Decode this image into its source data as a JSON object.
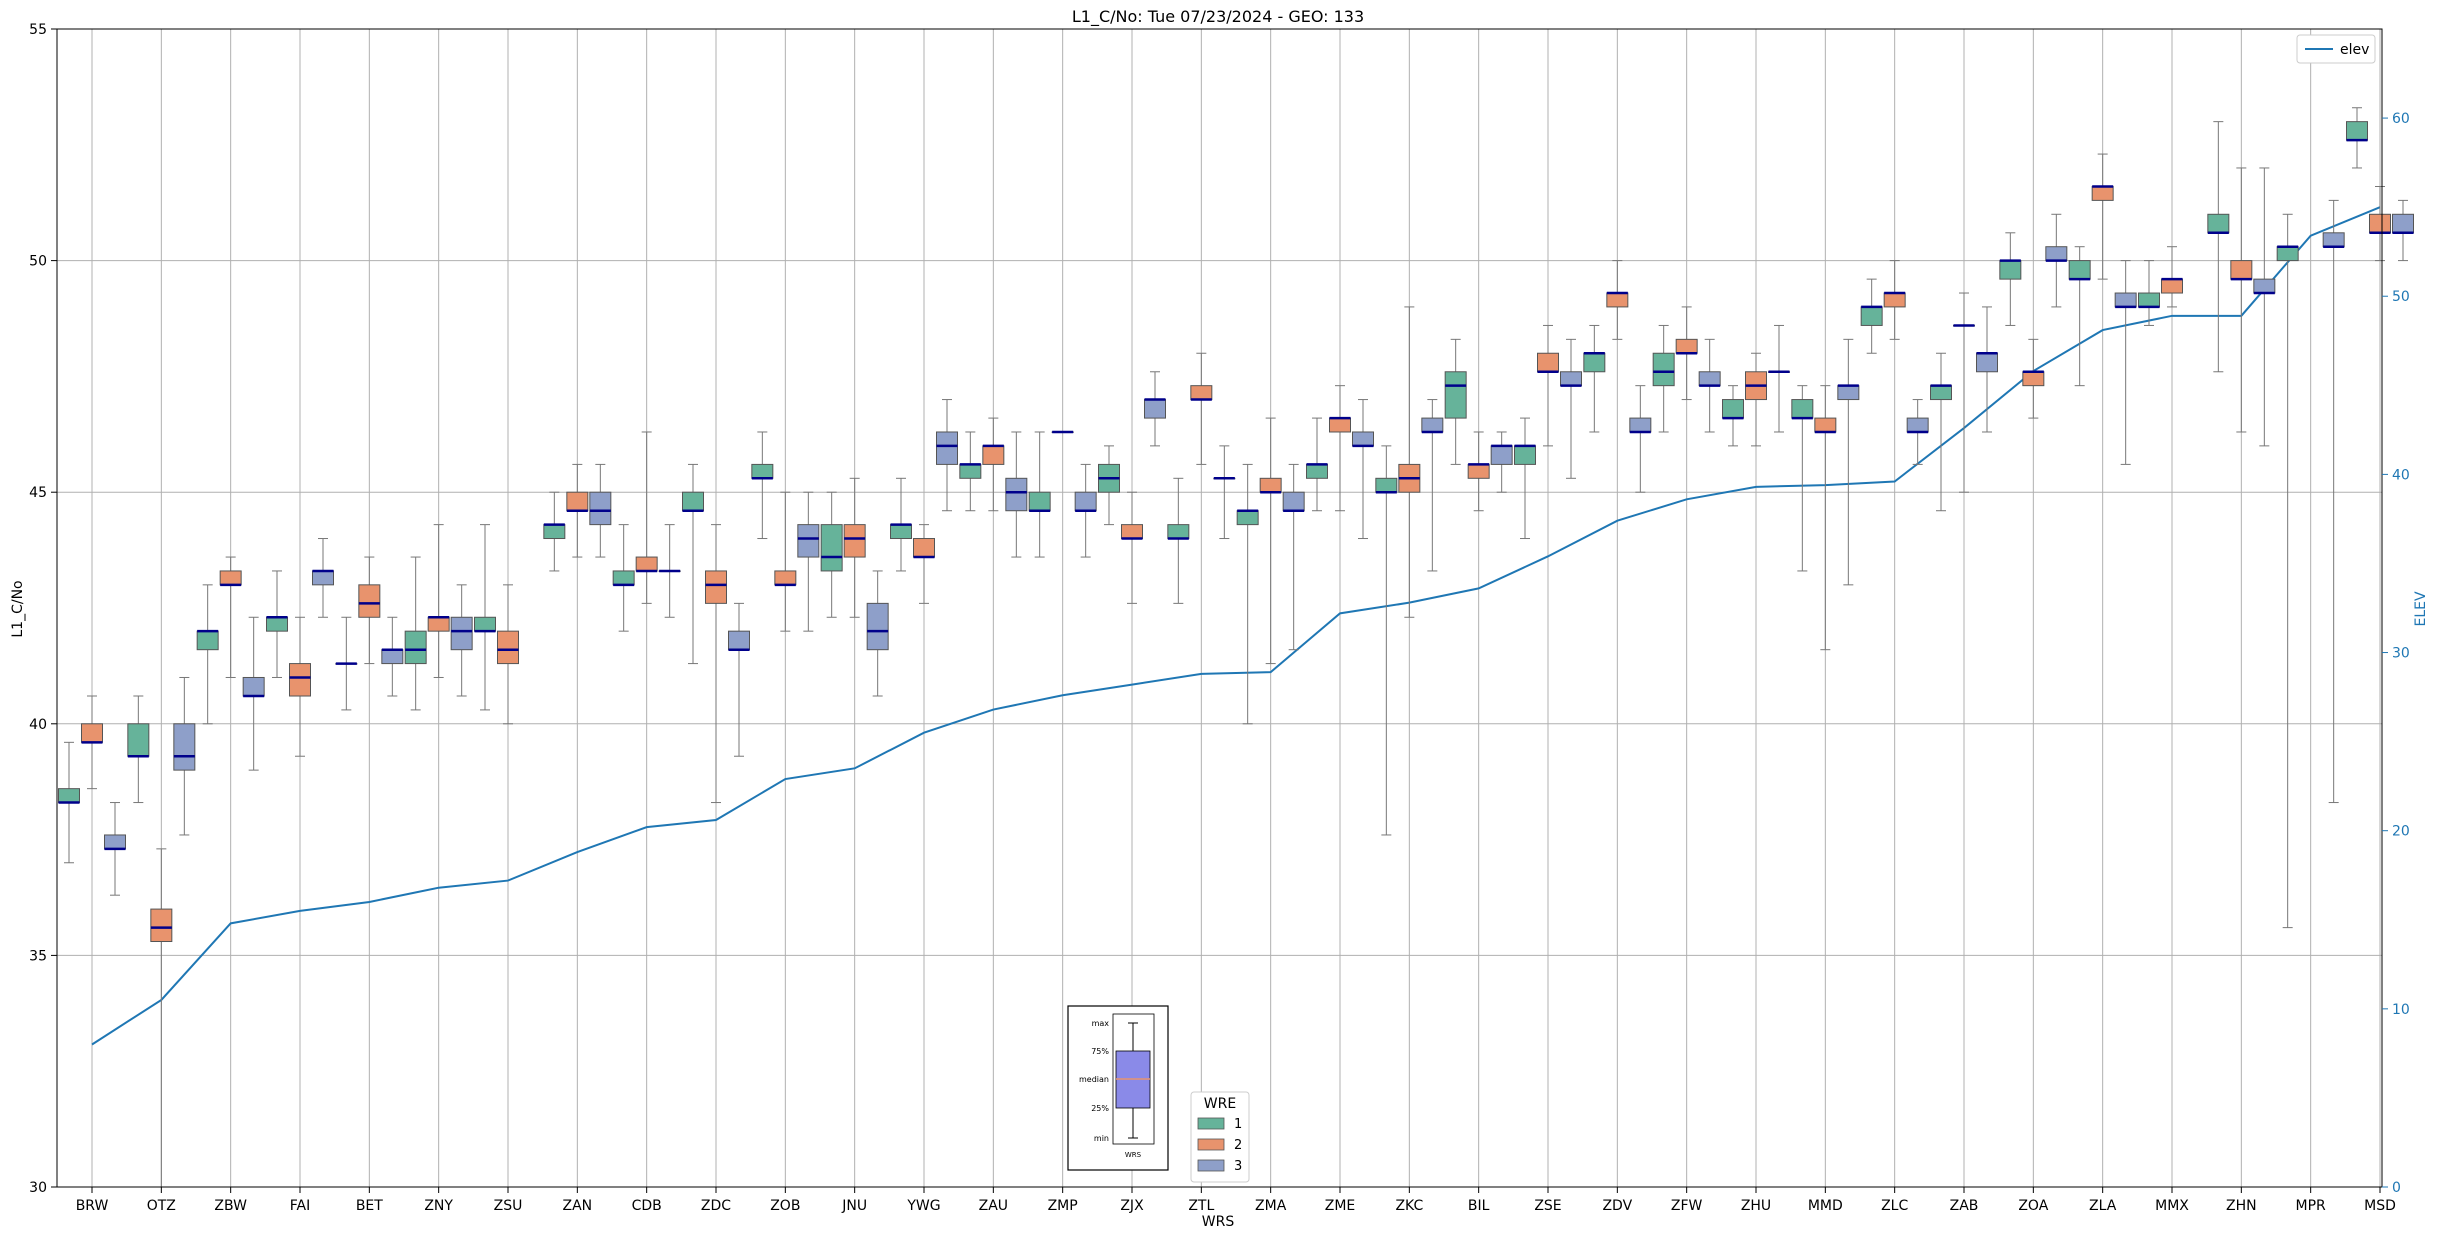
{
  "chart_data": {
    "type": "box",
    "title": "L1_C/No: Tue 07/23/2024 - GEO: 133",
    "xlabel": "WRS",
    "ylabel": "L1_C/No",
    "y2label": "ELEV",
    "ylim": [
      30,
      55
    ],
    "y2lim": [
      0,
      65
    ],
    "yticks": [
      30,
      35,
      40,
      45,
      50,
      55
    ],
    "y2ticks": [
      0,
      10,
      20,
      30,
      40,
      50,
      60
    ],
    "grid": true,
    "categories": [
      "BRW",
      "OTZ",
      "ZBW",
      "FAI",
      "BET",
      "ZNY",
      "ZSU",
      "ZAN",
      "CDB",
      "ZDC",
      "ZOB",
      "JNU",
      "YWG",
      "ZAU",
      "ZMP",
      "ZJX",
      "ZTL",
      "ZMA",
      "ZME",
      "ZKC",
      "BIL",
      "ZSE",
      "ZDV",
      "ZFW",
      "ZHU",
      "MMD",
      "ZLC",
      "ZAB",
      "ZOA",
      "ZLA",
      "MMX",
      "ZHN",
      "MPR",
      "MSD"
    ],
    "colors": {
      "wre1": "#66b39a",
      "wre2": "#e8936d",
      "wre3": "#8e9fc9",
      "median": "#00008b",
      "elev": "#1f77b4",
      "whisker": "#777777",
      "grid": "#b0b0b0"
    },
    "boxes": [
      {
        "cat": "BRW",
        "wre": 1,
        "min": 37.0,
        "q1": 38.3,
        "median": 38.3,
        "q3": 38.6,
        "max": 39.6
      },
      {
        "cat": "BRW",
        "wre": 2,
        "min": 38.6,
        "q1": 39.6,
        "median": 39.6,
        "q3": 40.0,
        "max": 40.6
      },
      {
        "cat": "BRW",
        "wre": 3,
        "min": 36.3,
        "q1": 37.3,
        "median": 37.3,
        "q3": 37.6,
        "max": 38.3
      },
      {
        "cat": "OTZ",
        "wre": 1,
        "min": 38.3,
        "q1": 39.3,
        "median": 39.3,
        "q3": 40.0,
        "max": 40.6
      },
      {
        "cat": "OTZ",
        "wre": 2,
        "min": 30.0,
        "q1": 35.3,
        "median": 35.6,
        "q3": 36.0,
        "max": 37.3
      },
      {
        "cat": "OTZ",
        "wre": 3,
        "min": 37.6,
        "q1": 39.0,
        "median": 39.3,
        "q3": 40.0,
        "max": 41.0
      },
      {
        "cat": "ZBW",
        "wre": 1,
        "min": 40.0,
        "q1": 41.6,
        "median": 42.0,
        "q3": 42.0,
        "max": 43.0
      },
      {
        "cat": "ZBW",
        "wre": 2,
        "min": 41.0,
        "q1": 43.0,
        "median": 43.0,
        "q3": 43.3,
        "max": 43.6
      },
      {
        "cat": "ZBW",
        "wre": 3,
        "min": 39.0,
        "q1": 40.6,
        "median": 40.6,
        "q3": 41.0,
        "max": 42.3
      },
      {
        "cat": "FAI",
        "wre": 1,
        "min": 41.0,
        "q1": 42.0,
        "median": 42.3,
        "q3": 42.3,
        "max": 43.3
      },
      {
        "cat": "FAI",
        "wre": 2,
        "min": 39.3,
        "q1": 40.6,
        "median": 41.0,
        "q3": 41.3,
        "max": 42.3
      },
      {
        "cat": "FAI",
        "wre": 3,
        "min": 42.3,
        "q1": 43.0,
        "median": 43.3,
        "q3": 43.3,
        "max": 44.0
      },
      {
        "cat": "BET",
        "wre": 1,
        "min": 40.3,
        "q1": 41.3,
        "median": 41.3,
        "q3": 41.3,
        "max": 42.3
      },
      {
        "cat": "BET",
        "wre": 2,
        "min": 41.3,
        "q1": 42.3,
        "median": 42.6,
        "q3": 43.0,
        "max": 43.6
      },
      {
        "cat": "BET",
        "wre": 3,
        "min": 40.6,
        "q1": 41.3,
        "median": 41.6,
        "q3": 41.6,
        "max": 42.3
      },
      {
        "cat": "ZNY",
        "wre": 1,
        "min": 40.3,
        "q1": 41.3,
        "median": 41.6,
        "q3": 42.0,
        "max": 43.6
      },
      {
        "cat": "ZNY",
        "wre": 2,
        "min": 41.0,
        "q1": 42.0,
        "median": 42.3,
        "q3": 42.3,
        "max": 44.3
      },
      {
        "cat": "ZNY",
        "wre": 3,
        "min": 40.6,
        "q1": 41.6,
        "median": 42.0,
        "q3": 42.3,
        "max": 43.0
      },
      {
        "cat": "ZSU",
        "wre": 1,
        "min": 40.3,
        "q1": 42.0,
        "median": 42.0,
        "q3": 42.3,
        "max": 44.3
      },
      {
        "cat": "ZSU",
        "wre": 2,
        "min": 40.0,
        "q1": 41.3,
        "median": 41.6,
        "q3": 42.0,
        "max": 43.0
      },
      {
        "cat": "ZAN",
        "wre": 1,
        "min": 43.3,
        "q1": 44.0,
        "median": 44.3,
        "q3": 44.3,
        "max": 45.0
      },
      {
        "cat": "ZAN",
        "wre": 2,
        "min": 43.6,
        "q1": 44.6,
        "median": 44.6,
        "q3": 45.0,
        "max": 45.6
      },
      {
        "cat": "ZAN",
        "wre": 3,
        "min": 43.6,
        "q1": 44.3,
        "median": 44.6,
        "q3": 45.0,
        "max": 45.6
      },
      {
        "cat": "CDB",
        "wre": 1,
        "min": 42.0,
        "q1": 43.0,
        "median": 43.0,
        "q3": 43.3,
        "max": 44.3
      },
      {
        "cat": "CDB",
        "wre": 2,
        "min": 42.6,
        "q1": 43.3,
        "median": 43.3,
        "q3": 43.6,
        "max": 46.3
      },
      {
        "cat": "CDB",
        "wre": 3,
        "min": 42.3,
        "q1": 43.3,
        "median": 43.3,
        "q3": 43.3,
        "max": 44.3
      },
      {
        "cat": "ZDC",
        "wre": 1,
        "min": 41.3,
        "q1": 44.6,
        "median": 44.6,
        "q3": 45.0,
        "max": 45.6
      },
      {
        "cat": "ZDC",
        "wre": 2,
        "min": 38.3,
        "q1": 42.6,
        "median": 43.0,
        "q3": 43.3,
        "max": 44.3
      },
      {
        "cat": "ZDC",
        "wre": 3,
        "min": 39.3,
        "q1": 41.6,
        "median": 41.6,
        "q3": 42.0,
        "max": 42.6
      },
      {
        "cat": "ZOB",
        "wre": 1,
        "min": 44.0,
        "q1": 45.3,
        "median": 45.3,
        "q3": 45.6,
        "max": 46.3
      },
      {
        "cat": "ZOB",
        "wre": 2,
        "min": 42.0,
        "q1": 43.0,
        "median": 43.0,
        "q3": 43.3,
        "max": 45.0
      },
      {
        "cat": "ZOB",
        "wre": 3,
        "min": 42.0,
        "q1": 43.6,
        "median": 44.0,
        "q3": 44.3,
        "max": 45.0
      },
      {
        "cat": "JNU",
        "wre": 1,
        "min": 42.3,
        "q1": 43.3,
        "median": 43.6,
        "q3": 44.3,
        "max": 45.0
      },
      {
        "cat": "JNU",
        "wre": 2,
        "min": 42.3,
        "q1": 43.6,
        "median": 44.0,
        "q3": 44.3,
        "max": 45.3
      },
      {
        "cat": "JNU",
        "wre": 3,
        "min": 40.6,
        "q1": 41.6,
        "median": 42.0,
        "q3": 42.6,
        "max": 43.3
      },
      {
        "cat": "YWG",
        "wre": 1,
        "min": 43.3,
        "q1": 44.0,
        "median": 44.3,
        "q3": 44.3,
        "max": 45.3
      },
      {
        "cat": "YWG",
        "wre": 2,
        "min": 42.6,
        "q1": 43.6,
        "median": 43.6,
        "q3": 44.0,
        "max": 44.3
      },
      {
        "cat": "YWG",
        "wre": 3,
        "min": 44.6,
        "q1": 45.6,
        "median": 46.0,
        "q3": 46.3,
        "max": 47.0
      },
      {
        "cat": "ZAU",
        "wre": 1,
        "min": 44.6,
        "q1": 45.3,
        "median": 45.6,
        "q3": 45.6,
        "max": 46.3
      },
      {
        "cat": "ZAU",
        "wre": 2,
        "min": 44.6,
        "q1": 45.6,
        "median": 46.0,
        "q3": 46.0,
        "max": 46.6
      },
      {
        "cat": "ZAU",
        "wre": 3,
        "min": 43.6,
        "q1": 44.6,
        "median": 45.0,
        "q3": 45.3,
        "max": 46.3
      },
      {
        "cat": "ZMP",
        "wre": 1,
        "min": 43.6,
        "q1": 44.6,
        "median": 44.6,
        "q3": 45.0,
        "max": 46.3
      },
      {
        "cat": "ZMP",
        "wre": 2,
        "min": 46.3,
        "q1": 46.3,
        "median": 46.3,
        "q3": 46.3,
        "max": 46.3
      },
      {
        "cat": "ZMP",
        "wre": 3,
        "min": 43.6,
        "q1": 44.6,
        "median": 44.6,
        "q3": 45.0,
        "max": 45.6
      },
      {
        "cat": "ZJX",
        "wre": 1,
        "min": 44.3,
        "q1": 45.0,
        "median": 45.3,
        "q3": 45.6,
        "max": 46.0
      },
      {
        "cat": "ZJX",
        "wre": 2,
        "min": 42.6,
        "q1": 44.0,
        "median": 44.0,
        "q3": 44.3,
        "max": 45.0
      },
      {
        "cat": "ZJX",
        "wre": 3,
        "min": 46.0,
        "q1": 46.6,
        "median": 47.0,
        "q3": 47.0,
        "max": 47.6
      },
      {
        "cat": "ZTL",
        "wre": 1,
        "min": 42.6,
        "q1": 44.0,
        "median": 44.0,
        "q3": 44.3,
        "max": 45.3
      },
      {
        "cat": "ZTL",
        "wre": 2,
        "min": 45.6,
        "q1": 47.0,
        "median": 47.0,
        "q3": 47.3,
        "max": 48.0
      },
      {
        "cat": "ZTL",
        "wre": 3,
        "min": 44.0,
        "q1": 45.3,
        "median": 45.3,
        "q3": 45.3,
        "max": 46.0
      },
      {
        "cat": "ZMA",
        "wre": 1,
        "min": 40.0,
        "q1": 44.3,
        "median": 44.6,
        "q3": 44.6,
        "max": 45.6
      },
      {
        "cat": "ZMA",
        "wre": 2,
        "min": 41.3,
        "q1": 45.0,
        "median": 45.0,
        "q3": 45.3,
        "max": 46.6
      },
      {
        "cat": "ZMA",
        "wre": 3,
        "min": 41.6,
        "q1": 44.6,
        "median": 44.6,
        "q3": 45.0,
        "max": 45.6
      },
      {
        "cat": "ZME",
        "wre": 1,
        "min": 44.6,
        "q1": 45.3,
        "median": 45.6,
        "q3": 45.6,
        "max": 46.6
      },
      {
        "cat": "ZME",
        "wre": 2,
        "min": 44.6,
        "q1": 46.3,
        "median": 46.6,
        "q3": 46.6,
        "max": 47.3
      },
      {
        "cat": "ZME",
        "wre": 3,
        "min": 44.0,
        "q1": 46.0,
        "median": 46.0,
        "q3": 46.3,
        "max": 47.0
      },
      {
        "cat": "ZKC",
        "wre": 1,
        "min": 37.6,
        "q1": 45.0,
        "median": 45.0,
        "q3": 45.3,
        "max": 46.0
      },
      {
        "cat": "ZKC",
        "wre": 2,
        "min": 42.3,
        "q1": 45.0,
        "median": 45.3,
        "q3": 45.6,
        "max": 49.0
      },
      {
        "cat": "ZKC",
        "wre": 3,
        "min": 43.3,
        "q1": 46.3,
        "median": 46.3,
        "q3": 46.6,
        "max": 47.0
      },
      {
        "cat": "BIL",
        "wre": 1,
        "min": 45.6,
        "q1": 46.6,
        "median": 47.3,
        "q3": 47.6,
        "max": 48.3
      },
      {
        "cat": "BIL",
        "wre": 2,
        "min": 44.6,
        "q1": 45.3,
        "median": 45.6,
        "q3": 45.6,
        "max": 46.3
      },
      {
        "cat": "BIL",
        "wre": 3,
        "min": 45.0,
        "q1": 45.6,
        "median": 46.0,
        "q3": 46.0,
        "max": 46.3
      },
      {
        "cat": "ZSE",
        "wre": 1,
        "min": 44.0,
        "q1": 45.6,
        "median": 46.0,
        "q3": 46.0,
        "max": 46.6
      },
      {
        "cat": "ZSE",
        "wre": 2,
        "min": 46.0,
        "q1": 47.6,
        "median": 47.6,
        "q3": 48.0,
        "max": 48.6
      },
      {
        "cat": "ZSE",
        "wre": 3,
        "min": 45.3,
        "q1": 47.3,
        "median": 47.3,
        "q3": 47.6,
        "max": 48.3
      },
      {
        "cat": "ZDV",
        "wre": 1,
        "min": 46.3,
        "q1": 47.6,
        "median": 48.0,
        "q3": 48.0,
        "max": 48.6
      },
      {
        "cat": "ZDV",
        "wre": 2,
        "min": 48.3,
        "q1": 49.0,
        "median": 49.3,
        "q3": 49.3,
        "max": 50.0
      },
      {
        "cat": "ZDV",
        "wre": 3,
        "min": 45.0,
        "q1": 46.3,
        "median": 46.3,
        "q3": 46.6,
        "max": 47.3
      },
      {
        "cat": "ZFW",
        "wre": 1,
        "min": 46.3,
        "q1": 47.3,
        "median": 47.6,
        "q3": 48.0,
        "max": 48.6
      },
      {
        "cat": "ZFW",
        "wre": 2,
        "min": 47.0,
        "q1": 48.0,
        "median": 48.0,
        "q3": 48.3,
        "max": 49.0
      },
      {
        "cat": "ZFW",
        "wre": 3,
        "min": 46.3,
        "q1": 47.3,
        "median": 47.3,
        "q3": 47.6,
        "max": 48.3
      },
      {
        "cat": "ZHU",
        "wre": 1,
        "min": 46.0,
        "q1": 46.6,
        "median": 46.6,
        "q3": 47.0,
        "max": 47.3
      },
      {
        "cat": "ZHU",
        "wre": 2,
        "min": 46.0,
        "q1": 47.0,
        "median": 47.3,
        "q3": 47.6,
        "max": 48.0
      },
      {
        "cat": "ZHU",
        "wre": 3,
        "min": 46.3,
        "q1": 47.6,
        "median": 47.6,
        "q3": 47.6,
        "max": 48.6
      },
      {
        "cat": "MMD",
        "wre": 1,
        "min": 43.3,
        "q1": 46.6,
        "median": 46.6,
        "q3": 47.0,
        "max": 47.3
      },
      {
        "cat": "MMD",
        "wre": 2,
        "min": 41.6,
        "q1": 46.3,
        "median": 46.3,
        "q3": 46.6,
        "max": 47.3
      },
      {
        "cat": "MMD",
        "wre": 3,
        "min": 43.0,
        "q1": 47.0,
        "median": 47.3,
        "q3": 47.3,
        "max": 48.3
      },
      {
        "cat": "ZLC",
        "wre": 1,
        "min": 48.0,
        "q1": 48.6,
        "median": 49.0,
        "q3": 49.0,
        "max": 49.6
      },
      {
        "cat": "ZLC",
        "wre": 2,
        "min": 48.3,
        "q1": 49.0,
        "median": 49.3,
        "q3": 49.3,
        "max": 50.0
      },
      {
        "cat": "ZLC",
        "wre": 3,
        "min": 45.6,
        "q1": 46.3,
        "median": 46.3,
        "q3": 46.6,
        "max": 47.0
      },
      {
        "cat": "ZAB",
        "wre": 1,
        "min": 44.6,
        "q1": 47.0,
        "median": 47.3,
        "q3": 47.3,
        "max": 48.0
      },
      {
        "cat": "ZAB",
        "wre": 2,
        "min": 45.0,
        "q1": 48.6,
        "median": 48.6,
        "q3": 48.6,
        "max": 49.3
      },
      {
        "cat": "ZAB",
        "wre": 3,
        "min": 46.3,
        "q1": 47.6,
        "median": 48.0,
        "q3": 48.0,
        "max": 49.0
      },
      {
        "cat": "ZOA",
        "wre": 1,
        "min": 48.6,
        "q1": 49.6,
        "median": 50.0,
        "q3": 50.0,
        "max": 50.6
      },
      {
        "cat": "ZOA",
        "wre": 2,
        "min": 46.6,
        "q1": 47.3,
        "median": 47.6,
        "q3": 47.6,
        "max": 48.3
      },
      {
        "cat": "ZOA",
        "wre": 3,
        "min": 49.0,
        "q1": 50.0,
        "median": 50.0,
        "q3": 50.3,
        "max": 51.0
      },
      {
        "cat": "ZLA",
        "wre": 1,
        "min": 47.3,
        "q1": 49.6,
        "median": 49.6,
        "q3": 50.0,
        "max": 50.3
      },
      {
        "cat": "ZLA",
        "wre": 2,
        "min": 49.6,
        "q1": 51.3,
        "median": 51.6,
        "q3": 51.6,
        "max": 52.3
      },
      {
        "cat": "ZLA",
        "wre": 3,
        "min": 45.6,
        "q1": 49.0,
        "median": 49.0,
        "q3": 49.3,
        "max": 50.0
      },
      {
        "cat": "MMX",
        "wre": 1,
        "min": 48.6,
        "q1": 49.0,
        "median": 49.0,
        "q3": 49.3,
        "max": 50.0
      },
      {
        "cat": "MMX",
        "wre": 2,
        "min": 49.0,
        "q1": 49.3,
        "median": 49.6,
        "q3": 49.6,
        "max": 50.3
      },
      {
        "cat": "ZHN",
        "wre": 1,
        "min": 47.6,
        "q1": 50.6,
        "median": 50.6,
        "q3": 51.0,
        "max": 53.0
      },
      {
        "cat": "ZHN",
        "wre": 2,
        "min": 46.3,
        "q1": 49.6,
        "median": 49.6,
        "q3": 50.0,
        "max": 52.0
      },
      {
        "cat": "ZHN",
        "wre": 3,
        "min": 46.0,
        "q1": 49.3,
        "median": 49.3,
        "q3": 49.6,
        "max": 52.0
      },
      {
        "cat": "MPR",
        "wre": 1,
        "min": 35.6,
        "q1": 50.0,
        "median": 50.3,
        "q3": 50.3,
        "max": 51.0
      },
      {
        "cat": "MPR",
        "wre": 3,
        "min": 38.3,
        "q1": 50.3,
        "median": 50.3,
        "q3": 50.6,
        "max": 51.3
      },
      {
        "cat": "MSD",
        "wre": 1,
        "min": 52.0,
        "q1": 52.6,
        "median": 52.6,
        "q3": 53.0,
        "max": 53.3
      },
      {
        "cat": "MSD",
        "wre": 2,
        "min": 50.0,
        "q1": 50.6,
        "median": 50.6,
        "q3": 51.0,
        "max": 51.6
      },
      {
        "cat": "MSD",
        "wre": 3,
        "min": 50.0,
        "q1": 50.6,
        "median": 50.6,
        "q3": 51.0,
        "max": 51.3
      }
    ],
    "elev": {
      "name": "elev",
      "values": [
        8,
        10.5,
        14.8,
        15.5,
        16,
        16.8,
        17.2,
        18.8,
        20.2,
        20.6,
        22.9,
        23.5,
        25.5,
        26.8,
        27.6,
        28.2,
        28.8,
        28.9,
        32.2,
        32.8,
        33.6,
        35.4,
        37.4,
        38.6,
        39.3,
        39.4,
        39.6,
        42.6,
        45.8,
        48.1,
        48.9,
        48.9,
        53.4,
        55.0
      ]
    },
    "legend_wre": {
      "title": "WRE",
      "entries": [
        "1",
        "2",
        "3"
      ],
      "placement": "lower-center"
    },
    "legend_elev": {
      "entries": [
        "elev"
      ],
      "placement": "top-right"
    },
    "key_box": {
      "labels": [
        "max",
        "75%",
        "median",
        "25%",
        "min"
      ],
      "xlabel": "WRS"
    }
  }
}
